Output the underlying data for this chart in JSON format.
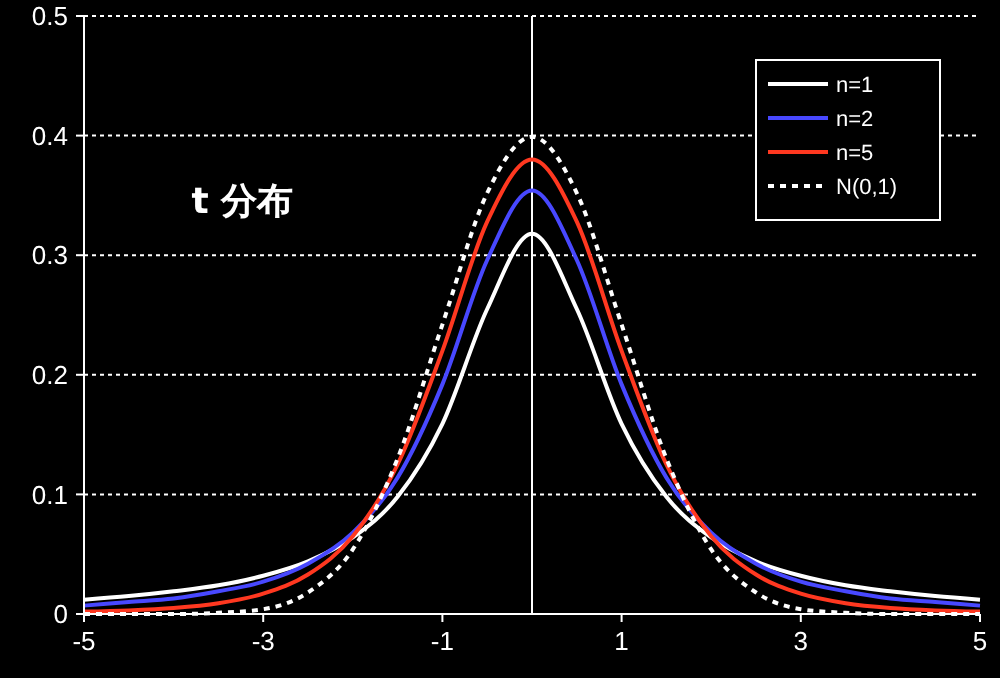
{
  "chart_data": {
    "type": "line",
    "x": [
      -5,
      -4.5,
      -4,
      -3.5,
      -3,
      -2.5,
      -2,
      -1.5,
      -1,
      -0.5,
      0,
      0.5,
      1,
      1.5,
      2,
      2.5,
      3,
      3.5,
      4,
      4.5,
      5
    ],
    "series": [
      {
        "name": "n=1",
        "color": "#ffffff",
        "line_style": "solid",
        "values": [
          0.012,
          0.015,
          0.019,
          0.024,
          0.032,
          0.044,
          0.064,
          0.098,
          0.159,
          0.255,
          0.318,
          0.255,
          0.159,
          0.098,
          0.064,
          0.044,
          0.032,
          0.024,
          0.019,
          0.015,
          0.012
        ]
      },
      {
        "name": "n=2",
        "color": "#4848ff",
        "line_style": "solid",
        "values": [
          0.007,
          0.01,
          0.013,
          0.019,
          0.027,
          0.042,
          0.068,
          0.114,
          0.192,
          0.296,
          0.354,
          0.296,
          0.192,
          0.114,
          0.068,
          0.042,
          0.027,
          0.019,
          0.013,
          0.01,
          0.007
        ]
      },
      {
        "name": "n=5",
        "color": "#ff3820",
        "line_style": "solid",
        "values": [
          0.002,
          0.003,
          0.005,
          0.009,
          0.017,
          0.033,
          0.065,
          0.125,
          0.22,
          0.328,
          0.38,
          0.328,
          0.22,
          0.125,
          0.065,
          0.033,
          0.017,
          0.009,
          0.005,
          0.003,
          0.002
        ]
      },
      {
        "name": "N(0,1)",
        "color": "#ffffff",
        "line_style": "dotted",
        "values": [
          0,
          0,
          0,
          0.001,
          0.004,
          0.018,
          0.054,
          0.13,
          0.242,
          0.352,
          0.399,
          0.352,
          0.242,
          0.13,
          0.054,
          0.018,
          0.004,
          0.001,
          0,
          0,
          0
        ]
      }
    ],
    "xlim": [
      -5,
      5
    ],
    "xticks": [
      -5,
      -3,
      -1,
      1,
      3,
      5
    ],
    "ylim": [
      0,
      0.5
    ],
    "yticks": [
      0,
      0.1,
      0.2,
      0.3,
      0.4,
      0.5
    ],
    "grid": "y",
    "legend": "top right",
    "marker": "none",
    "ref_lines": [
      {
        "axis": "x",
        "value": 0,
        "color": "#ffffff"
      }
    ],
    "annotations": [
      "t 分布"
    ]
  }
}
